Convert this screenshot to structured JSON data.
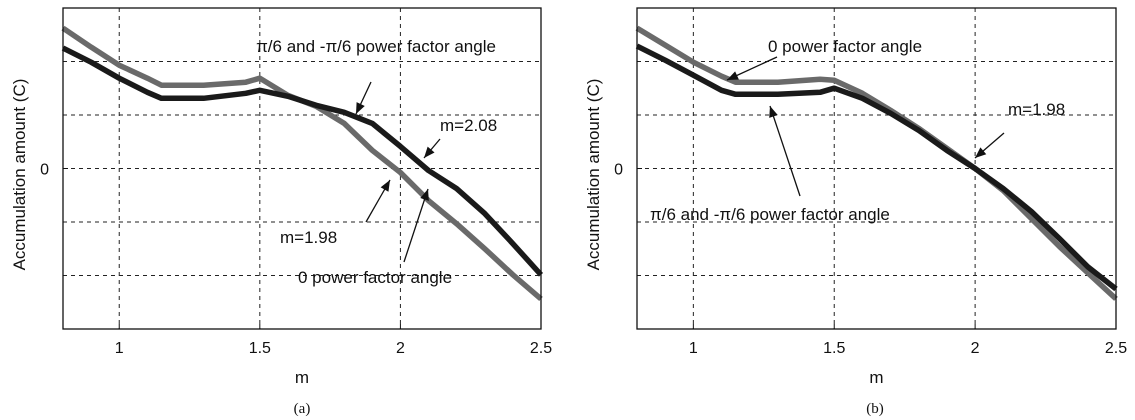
{
  "chart_data": [
    {
      "type": "line",
      "caption": "(a)",
      "xlabel": "m",
      "ylabel": "Accumulation amount (C)",
      "xlim": [
        0.8,
        2.5
      ],
      "ylim": [
        -1.6,
        1.6
      ],
      "xticks": [
        1,
        1.5,
        2,
        2.5
      ],
      "xtick_labels": [
        "1",
        "1.5",
        "2",
        "2.5"
      ],
      "yticks": [
        0
      ],
      "ytick_labels": [
        "0"
      ],
      "grid": true,
      "series": [
        {
          "name": "0 power factor angle",
          "color": "#6a6a6a",
          "x": [
            0.8,
            0.9,
            1.0,
            1.1,
            1.15,
            1.3,
            1.45,
            1.5,
            1.6,
            1.7,
            1.8,
            1.9,
            2.0,
            2.1,
            2.2,
            2.3,
            2.4,
            2.5
          ],
          "y": [
            1.4,
            1.21,
            1.03,
            0.9,
            0.83,
            0.83,
            0.86,
            0.9,
            0.73,
            0.62,
            0.45,
            0.18,
            -0.04,
            -0.32,
            -0.55,
            -0.8,
            -1.06,
            -1.3
          ]
        },
        {
          "name": "π/6 and -π/6 power factor angle",
          "color": "#1a1a1a",
          "x": [
            0.8,
            0.9,
            1.0,
            1.1,
            1.15,
            1.3,
            1.45,
            1.5,
            1.6,
            1.7,
            1.8,
            1.9,
            2.0,
            2.1,
            2.2,
            2.3,
            2.4,
            2.5
          ],
          "y": [
            1.2,
            1.06,
            0.9,
            0.76,
            0.7,
            0.7,
            0.75,
            0.78,
            0.72,
            0.63,
            0.56,
            0.45,
            0.22,
            -0.02,
            -0.2,
            -0.45,
            -0.75,
            -1.06
          ]
        }
      ],
      "annotations": [
        {
          "text": "π/6 and -π/6 power factor angle",
          "target": [
            1.88,
            0.57
          ]
        },
        {
          "text": "m=2.08",
          "target": [
            2.08,
            0.05
          ]
        },
        {
          "text": "m=1.98",
          "target": [
            1.96,
            -0.08
          ]
        },
        {
          "text": "0 power factor angle",
          "target": [
            2.1,
            -0.3
          ]
        }
      ]
    },
    {
      "type": "line",
      "caption": "(b)",
      "xlabel": "m",
      "ylabel": "Accumulation amount (C)",
      "xlim": [
        0.8,
        2.5
      ],
      "ylim": [
        -1.6,
        1.6
      ],
      "xticks": [
        1,
        1.5,
        2,
        2.5
      ],
      "xtick_labels": [
        "1",
        "1.5",
        "2",
        "2.5"
      ],
      "yticks": [
        0
      ],
      "ytick_labels": [
        "0"
      ],
      "grid": true,
      "series": [
        {
          "name": "0 power factor angle",
          "color": "#6a6a6a",
          "x": [
            0.8,
            0.9,
            1.0,
            1.1,
            1.15,
            1.3,
            1.45,
            1.5,
            1.6,
            1.7,
            1.8,
            1.9,
            2.0,
            2.1,
            2.2,
            2.3,
            2.4,
            2.5
          ],
          "y": [
            1.4,
            1.23,
            1.06,
            0.92,
            0.86,
            0.86,
            0.89,
            0.88,
            0.75,
            0.58,
            0.4,
            0.2,
            0.0,
            -0.22,
            -0.5,
            -0.78,
            -1.04,
            -1.3
          ]
        },
        {
          "name": "π/6 and -π/6 power factor angle",
          "color": "#1a1a1a",
          "x": [
            0.8,
            0.9,
            1.0,
            1.1,
            1.15,
            1.3,
            1.45,
            1.5,
            1.6,
            1.7,
            1.8,
            1.9,
            2.0,
            2.1,
            2.2,
            2.3,
            2.4,
            2.5
          ],
          "y": [
            1.22,
            1.08,
            0.93,
            0.78,
            0.74,
            0.74,
            0.76,
            0.8,
            0.7,
            0.55,
            0.38,
            0.18,
            0.0,
            -0.2,
            -0.43,
            -0.7,
            -0.98,
            -1.2
          ]
        }
      ],
      "annotations": [
        {
          "text": "0 power factor angle",
          "target": [
            1.14,
            1.04
          ]
        },
        {
          "text": "m=1.98",
          "target": [
            1.99,
            0.05
          ]
        },
        {
          "text": "π/6 and -π/6 power factor angle",
          "target": [
            1.3,
            0.7
          ]
        }
      ]
    }
  ]
}
